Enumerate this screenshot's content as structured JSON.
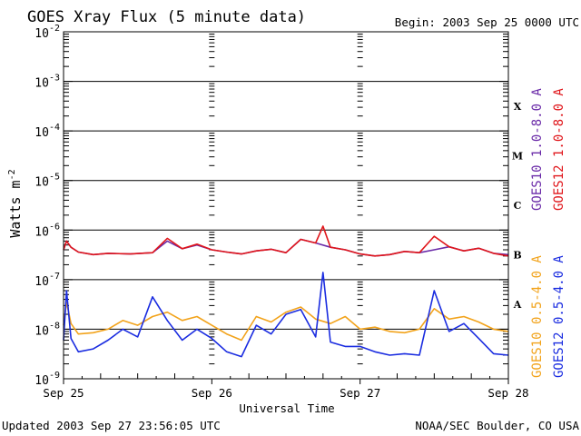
{
  "chart_data": {
    "type": "line",
    "title": "GOES Xray Flux (5 minute data)",
    "begin_label": "Begin:  2003 Sep 25 0000 UTC",
    "xlabel": "Universal Time",
    "ylabel_base": "Watts m",
    "ylabel_exp": "-2",
    "yscale": "log",
    "ylim": [
      1e-09,
      0.01
    ],
    "y_tick_labels": [
      {
        "base": "10",
        "exp": "-2",
        "value": 0.01
      },
      {
        "base": "10",
        "exp": "-3",
        "value": 0.001
      },
      {
        "base": "10",
        "exp": "-4",
        "value": 0.0001
      },
      {
        "base": "10",
        "exp": "-5",
        "value": 1e-05
      },
      {
        "base": "10",
        "exp": "-6",
        "value": 1e-06
      },
      {
        "base": "10",
        "exp": "-7",
        "value": 1e-07
      },
      {
        "base": "10",
        "exp": "-8",
        "value": 1e-08
      },
      {
        "base": "10",
        "exp": "-9",
        "value": 1e-09
      }
    ],
    "x_days": [
      0,
      3
    ],
    "x_tick_labels": [
      {
        "label": "Sep 25",
        "day": 0
      },
      {
        "label": "Sep 26",
        "day": 1
      },
      {
        "label": "Sep 27",
        "day": 2
      },
      {
        "label": "Sep 28",
        "day": 3
      }
    ],
    "flare_classes": [
      {
        "label": "X",
        "low": 0.0001,
        "high": 0.001
      },
      {
        "label": "M",
        "low": 1e-05,
        "high": 0.0001
      },
      {
        "label": "C",
        "low": 1e-06,
        "high": 1e-05
      },
      {
        "label": "B",
        "low": 1e-07,
        "high": 1e-06
      },
      {
        "label": "A",
        "low": 1e-08,
        "high": 1e-07
      }
    ],
    "grid": "horizontal lines at each decade between 1e-8 and 1e-3",
    "series": [
      {
        "name": "GOES10 1.0-8.0 A",
        "color": "#6a2aa8",
        "x": [
          0,
          0.02,
          0.05,
          0.1,
          0.2,
          0.3,
          0.45,
          0.6,
          0.7,
          0.8,
          0.9,
          1.0,
          1.1,
          1.2,
          1.3,
          1.4,
          1.5,
          1.6,
          1.7,
          1.8,
          1.9,
          2.0,
          2.1,
          2.2,
          2.3,
          2.4,
          2.5,
          2.6,
          2.7,
          2.8,
          2.9,
          3.0
        ],
        "y": [
          4e-07,
          6e-07,
          4.5e-07,
          3.6e-07,
          3.2e-07,
          3.4e-07,
          3.3e-07,
          3.5e-07,
          6e-07,
          4.2e-07,
          5e-07,
          4e-07,
          3.6e-07,
          3.3e-07,
          3.8e-07,
          4.1e-07,
          3.5e-07,
          6.5e-07,
          5.5e-07,
          4.5e-07,
          4e-07,
          3.3e-07,
          3e-07,
          3.2e-07,
          3.7e-07,
          3.5e-07,
          4e-07,
          4.6e-07,
          3.8e-07,
          4.3e-07,
          3.4e-07,
          3.2e-07
        ]
      },
      {
        "name": "GOES12 1.0-8.0 A",
        "color": "#e0161b",
        "x": [
          0,
          0.02,
          0.05,
          0.1,
          0.2,
          0.3,
          0.45,
          0.6,
          0.7,
          0.8,
          0.9,
          1.0,
          1.1,
          1.2,
          1.3,
          1.4,
          1.5,
          1.6,
          1.7,
          1.75,
          1.8,
          1.9,
          2.0,
          2.1,
          2.2,
          2.3,
          2.4,
          2.5,
          2.6,
          2.7,
          2.8,
          2.9,
          3.0
        ],
        "y": [
          4e-07,
          6e-07,
          4.5e-07,
          3.6e-07,
          3.2e-07,
          3.4e-07,
          3.3e-07,
          3.5e-07,
          6.8e-07,
          4.2e-07,
          5.2e-07,
          4e-07,
          3.6e-07,
          3.3e-07,
          3.8e-07,
          4.1e-07,
          3.5e-07,
          6.5e-07,
          5.5e-07,
          1.2e-06,
          4.5e-07,
          4e-07,
          3.3e-07,
          3e-07,
          3.2e-07,
          3.7e-07,
          3.5e-07,
          7.5e-07,
          4.6e-07,
          3.8e-07,
          4.3e-07,
          3.4e-07,
          3e-07
        ]
      },
      {
        "name": "GOES10 0.5-4.0 A",
        "color": "#f2a31b",
        "x": [
          0,
          0.02,
          0.05,
          0.1,
          0.2,
          0.3,
          0.4,
          0.5,
          0.6,
          0.7,
          0.8,
          0.9,
          1.0,
          1.1,
          1.2,
          1.3,
          1.4,
          1.5,
          1.6,
          1.7,
          1.8,
          1.9,
          2.0,
          2.1,
          2.2,
          2.3,
          2.4,
          2.5,
          2.6,
          2.7,
          2.8,
          2.9,
          3.0
        ],
        "y": [
          1.2e-08,
          3.5e-08,
          1.3e-08,
          8e-09,
          8.5e-09,
          1e-08,
          1.5e-08,
          1.2e-08,
          1.8e-08,
          2.2e-08,
          1.5e-08,
          1.8e-08,
          1.2e-08,
          8e-09,
          6e-09,
          1.8e-08,
          1.4e-08,
          2.2e-08,
          2.8e-08,
          1.6e-08,
          1.3e-08,
          1.8e-08,
          1e-08,
          1.1e-08,
          9e-09,
          8.5e-09,
          1e-08,
          2.6e-08,
          1.6e-08,
          1.8e-08,
          1.4e-08,
          1e-08,
          9e-09
        ]
      },
      {
        "name": "GOES12 0.5-4.0 A",
        "color": "#1a2ce0",
        "x": [
          0,
          0.02,
          0.05,
          0.1,
          0.2,
          0.3,
          0.4,
          0.5,
          0.6,
          0.7,
          0.8,
          0.9,
          1.0,
          1.1,
          1.2,
          1.3,
          1.4,
          1.5,
          1.6,
          1.7,
          1.75,
          1.8,
          1.9,
          2.0,
          2.1,
          2.2,
          2.3,
          2.4,
          2.5,
          2.6,
          2.7,
          2.8,
          2.9,
          3.0
        ],
        "y": [
          6e-09,
          6e-08,
          6.5e-09,
          3.5e-09,
          4e-09,
          6e-09,
          1e-08,
          7e-09,
          4.5e-08,
          1.5e-08,
          6e-09,
          1e-08,
          6.5e-09,
          3.5e-09,
          2.8e-09,
          1.2e-08,
          8e-09,
          2e-08,
          2.5e-08,
          7e-09,
          1.4e-07,
          5.5e-09,
          4.5e-09,
          4.5e-09,
          3.5e-09,
          3e-09,
          3.2e-09,
          3e-09,
          6e-08,
          9e-09,
          1.3e-08,
          6.5e-09,
          3.2e-09,
          3e-09
        ]
      }
    ]
  },
  "footer": {
    "updated": "Updated 2003 Sep 27 23:56:05 UTC",
    "source": "NOAA/SEC Boulder, CO USA"
  }
}
